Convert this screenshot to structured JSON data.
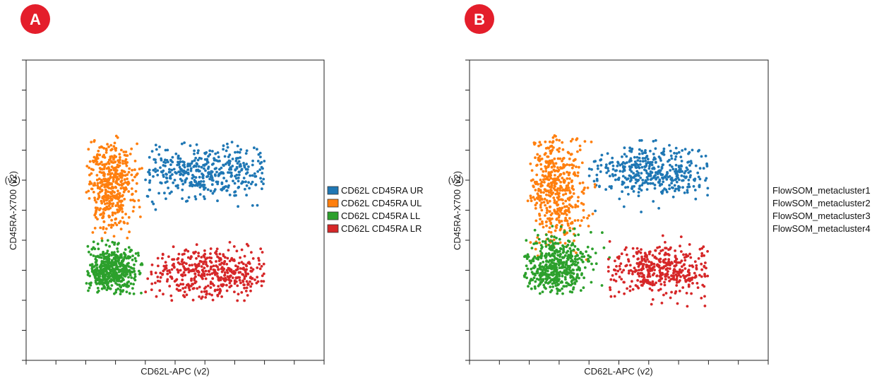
{
  "chart_data": [
    {
      "type": "scatter",
      "panel_label": "A",
      "xlabel": "CD62L-APC (v2)",
      "ylabel": "CD45RA-X700 (v2)",
      "xlim": [
        0,
        10
      ],
      "ylim": [
        0,
        10
      ],
      "y_tick_labels": [
        {
          "value": 6,
          "label": "(v2)"
        }
      ],
      "legend_placement": "right",
      "legend_swatches": true,
      "series": [
        {
          "name": "CD62L CD45RA UR",
          "color": "#1f77b4",
          "n": 420,
          "cx": 6.1,
          "cy": 6.3,
          "sx": 1.25,
          "sy": 0.45,
          "xr": [
            4.0,
            8.0
          ],
          "yr": [
            4.0,
            7.3
          ],
          "seed": 11
        },
        {
          "name": "CD62L CD45RA UL",
          "color": "#ff7f0e",
          "n": 430,
          "cx": 2.8,
          "cy": 5.8,
          "sx": 0.38,
          "sy": 0.85,
          "xr": [
            2.0,
            4.0
          ],
          "yr": [
            4.0,
            7.5
          ],
          "seed": 23
        },
        {
          "name": "CD62L CD45RA LL",
          "color": "#2ca02c",
          "n": 480,
          "cx": 2.9,
          "cy": 3.0,
          "sx": 0.42,
          "sy": 0.42,
          "xr": [
            2.0,
            4.0
          ],
          "yr": [
            2.2,
            4.0
          ],
          "seed": 37
        },
        {
          "name": "CD62L CD45RA LR",
          "color": "#d62728",
          "n": 440,
          "cx": 6.2,
          "cy": 2.9,
          "sx": 1.2,
          "sy": 0.42,
          "xr": [
            4.0,
            8.0
          ],
          "yr": [
            1.7,
            4.0
          ],
          "seed": 53
        }
      ]
    },
    {
      "type": "scatter",
      "panel_label": "B",
      "xlabel": "CD62L-APC (v2)",
      "ylabel": "CD45RA-X700 (v2)",
      "xlim": [
        0,
        10
      ],
      "ylim": [
        0,
        10
      ],
      "y_tick_labels": [
        {
          "value": 6,
          "label": "(v2)"
        }
      ],
      "legend_placement": "right",
      "legend_swatches": false,
      "series": [
        {
          "name": "FlowSOM_metacluster1",
          "color": "#1f77b4",
          "n": 400,
          "cx": 6.2,
          "cy": 6.3,
          "sx": 1.15,
          "sy": 0.45,
          "xr": [
            4.0,
            8.0
          ],
          "yr": [
            4.4,
            7.4
          ],
          "seed": 71
        },
        {
          "name": "FlowSOM_metacluster2",
          "color": "#ff7f0e",
          "n": 470,
          "cx": 2.9,
          "cy": 5.8,
          "sx": 0.45,
          "sy": 1.0,
          "xr": [
            1.8,
            5.0
          ],
          "yr": [
            3.2,
            7.5
          ],
          "seed": 83
        },
        {
          "name": "FlowSOM_metacluster3",
          "color": "#2ca02c",
          "n": 470,
          "cx": 2.9,
          "cy": 3.1,
          "sx": 0.55,
          "sy": 0.5,
          "xr": [
            1.8,
            5.0
          ],
          "yr": [
            2.2,
            4.6
          ],
          "seed": 97
        },
        {
          "name": "FlowSOM_metacluster4",
          "color": "#d62728",
          "n": 400,
          "cx": 6.5,
          "cy": 3.0,
          "sx": 1.0,
          "sy": 0.45,
          "xr": [
            4.6,
            8.0
          ],
          "yr": [
            1.7,
            5.0
          ],
          "seed": 109
        }
      ]
    }
  ]
}
